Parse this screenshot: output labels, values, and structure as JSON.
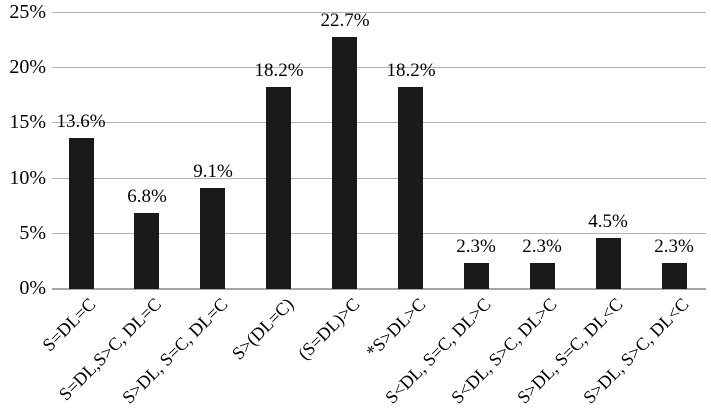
{
  "chart_data": {
    "type": "bar",
    "title": "",
    "xlabel": "",
    "ylabel": "",
    "categories": [
      "S=DL=C",
      "S=DL,S>C, DL=C",
      "S>DL, S=C, DL=C",
      "S>(DL=C)",
      "(S=DL)>C",
      "*S>DL>C",
      "S<DL, S=C, DL>C",
      "S<DL, S>C, DL>C",
      "S>DL, S=C, DL<C",
      "S>DL, S>C, DL<C"
    ],
    "values": [
      13.6,
      6.8,
      9.1,
      18.2,
      22.7,
      18.2,
      2.3,
      2.3,
      4.5,
      2.3
    ],
    "value_labels": [
      "13.6%",
      "6.8%",
      "9.1%",
      "18.2%",
      "22.7%",
      "18.2%",
      "2.3%",
      "2.3%",
      "4.5%",
      "2.3%"
    ],
    "ylim": [
      0,
      25
    ],
    "ytick_step": 5,
    "ytick_labels": [
      "0%",
      "5%",
      "10%",
      "15%",
      "20%",
      "25%"
    ],
    "grid": true,
    "legend": "none",
    "colors": {
      "bar": "#1a1a1a",
      "gridline": "#b3b3b3",
      "baseline": "#a6a6a6",
      "text": "#000000",
      "background": "#ffffff"
    }
  }
}
